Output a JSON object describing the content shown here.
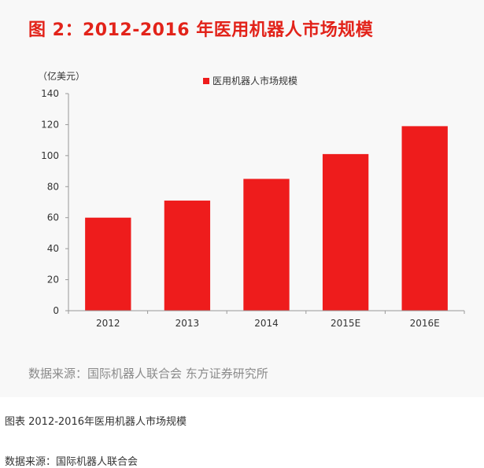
{
  "figure": {
    "title": "图 2：2012-2016 年医用机器人市场规模",
    "source": "数据来源：国际机器人联合会  东方证券研究所"
  },
  "caption": {
    "title": "图表 2012-2016年医用机器人市场规模",
    "source": "数据来源：国际机器人联合会"
  },
  "chart_data": {
    "type": "bar",
    "categories": [
      "2012",
      "2013",
      "2014",
      "2015E",
      "2016E"
    ],
    "series": [
      {
        "name": "医用机器人市场规模",
        "values": [
          60,
          71,
          85,
          101,
          119
        ],
        "color": "#ee1c1c"
      }
    ],
    "unit_label": "（亿美元）",
    "ylim": [
      0,
      140
    ],
    "yticks": [
      0,
      20,
      40,
      60,
      80,
      100,
      120,
      140
    ],
    "grid": false,
    "legend": "top-center"
  },
  "colors": {
    "bar": "#ee1c1c",
    "title": "#e2231a",
    "axis": "#999999",
    "text": "#333333"
  }
}
